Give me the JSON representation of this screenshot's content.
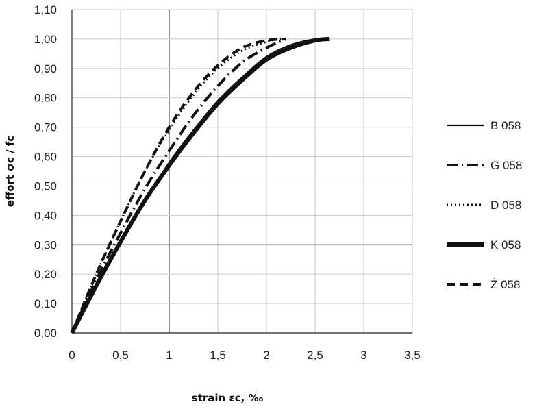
{
  "chart_data": {
    "type": "line",
    "xlabel": "strain εc, ‰",
    "ylabel": "effort σc / fc",
    "xlim": [
      0,
      3.5
    ],
    "ylim": [
      0,
      1.1
    ],
    "xticks": [
      0,
      0.5,
      1,
      1.5,
      2,
      2.5,
      3,
      3.5
    ],
    "xtick_labels": [
      "0",
      "0,5",
      "1",
      "1,5",
      "2",
      "2,5",
      "3",
      "3,5"
    ],
    "yticks": [
      0,
      0.1,
      0.2,
      0.3,
      0.4,
      0.5,
      0.6,
      0.7,
      0.8,
      0.9,
      1.0,
      1.1
    ],
    "ytick_labels": [
      "0,00",
      "0,10",
      "0,20",
      "0,30",
      "0,40",
      "0,50",
      "0,60",
      "0,70",
      "0,80",
      "0,90",
      "1,00",
      "1,10"
    ],
    "grid": true,
    "legend_position": "right",
    "series": [
      {
        "name": "B 058",
        "style": "solid-thin",
        "x": [
          0,
          0.25,
          0.5,
          0.75,
          1.0,
          1.25,
          1.5,
          1.75,
          2.0,
          2.25,
          2.5,
          2.6
        ],
        "y": [
          0,
          0.16,
          0.31,
          0.45,
          0.58,
          0.69,
          0.79,
          0.87,
          0.94,
          0.98,
          1.0,
          1.0
        ]
      },
      {
        "name": "G 058",
        "style": "dash-dot",
        "x": [
          0,
          0.25,
          0.5,
          0.75,
          1.0,
          1.25,
          1.5,
          1.75,
          2.0,
          2.2
        ],
        "y": [
          0,
          0.18,
          0.34,
          0.49,
          0.62,
          0.74,
          0.84,
          0.92,
          0.97,
          1.0
        ]
      },
      {
        "name": "D 058",
        "style": "dotted",
        "x": [
          0,
          0.25,
          0.5,
          0.75,
          1.0,
          1.25,
          1.5,
          1.75,
          2.0,
          2.15
        ],
        "y": [
          0,
          0.2,
          0.38,
          0.55,
          0.69,
          0.81,
          0.9,
          0.96,
          0.99,
          1.0
        ]
      },
      {
        "name": "K 058",
        "style": "solid-thick",
        "x": [
          0,
          0.25,
          0.5,
          0.75,
          1.0,
          1.25,
          1.5,
          1.75,
          2.0,
          2.25,
          2.5,
          2.65
        ],
        "y": [
          0,
          0.16,
          0.31,
          0.45,
          0.57,
          0.68,
          0.78,
          0.86,
          0.93,
          0.97,
          0.995,
          1.0
        ]
      },
      {
        "name": "Ż 058",
        "style": "dashed",
        "x": [
          0,
          0.25,
          0.5,
          0.75,
          1.0,
          1.25,
          1.5,
          1.75,
          2.0,
          2.2
        ],
        "y": [
          0,
          0.2,
          0.38,
          0.55,
          0.7,
          0.82,
          0.91,
          0.97,
          0.995,
          1.0
        ]
      }
    ]
  }
}
